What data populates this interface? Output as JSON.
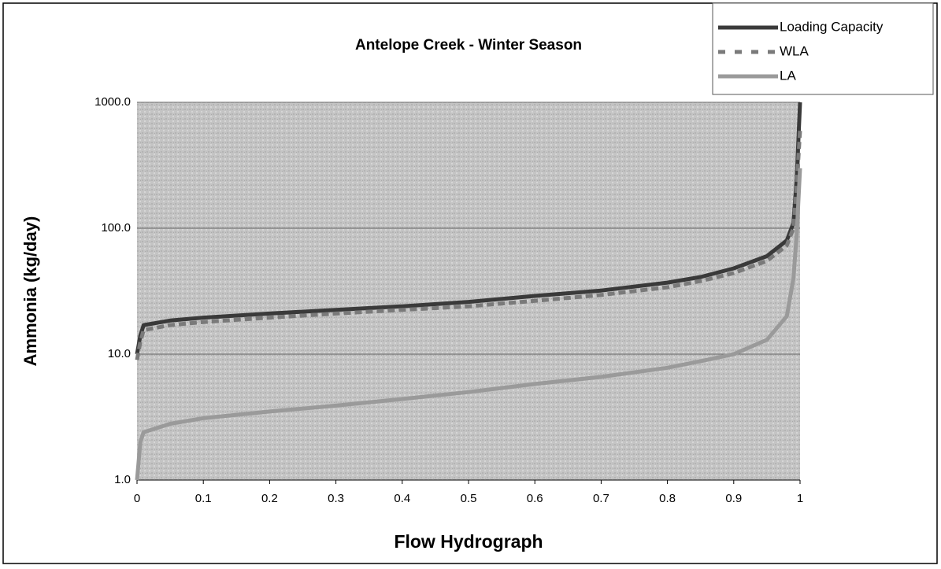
{
  "chart_data": {
    "type": "line",
    "title": "Antelope Creek - Winter Season",
    "xlabel": "Flow Hydrograph",
    "ylabel": "Ammonia (kg/day)",
    "x": [
      0,
      0.005,
      0.01,
      0.05,
      0.1,
      0.2,
      0.3,
      0.4,
      0.5,
      0.6,
      0.7,
      0.8,
      0.85,
      0.9,
      0.95,
      0.98,
      0.99,
      0.995,
      1.0
    ],
    "series": [
      {
        "name": "Loading Capacity",
        "color": "#3a3a3a",
        "dash": false,
        "values": [
          10,
          14,
          17,
          18.5,
          19.5,
          21,
          22.5,
          24,
          26,
          29,
          32,
          37,
          41,
          48,
          60,
          80,
          110,
          250,
          1000
        ]
      },
      {
        "name": "WLA",
        "color": "#7a7a7a",
        "dash": true,
        "values": [
          9,
          12.5,
          15.5,
          17,
          18,
          19.5,
          21,
          22.5,
          24,
          26.5,
          29.5,
          34,
          38,
          44,
          55,
          73,
          100,
          220,
          600
        ]
      },
      {
        "name": "LA",
        "color": "#9a9a9a",
        "dash": false,
        "values": [
          1,
          2,
          2.4,
          2.8,
          3.1,
          3.5,
          3.9,
          4.4,
          5,
          5.8,
          6.6,
          7.8,
          8.8,
          10,
          13,
          20,
          40,
          90,
          300
        ]
      }
    ],
    "xlim": [
      0,
      1
    ],
    "xticks": [
      0,
      0.1,
      0.2,
      0.3,
      0.4,
      0.5,
      0.6,
      0.7,
      0.8,
      0.9,
      1
    ],
    "ylim": [
      1,
      1000
    ],
    "yticks": [
      {
        "value": 1,
        "label": "1.0"
      },
      {
        "value": 10,
        "label": "10.0"
      },
      {
        "value": 100,
        "label": "100.0"
      },
      {
        "value": 1000,
        "label": "1000.0"
      }
    ],
    "ylog": true,
    "grid": true,
    "legend": "top-right"
  }
}
